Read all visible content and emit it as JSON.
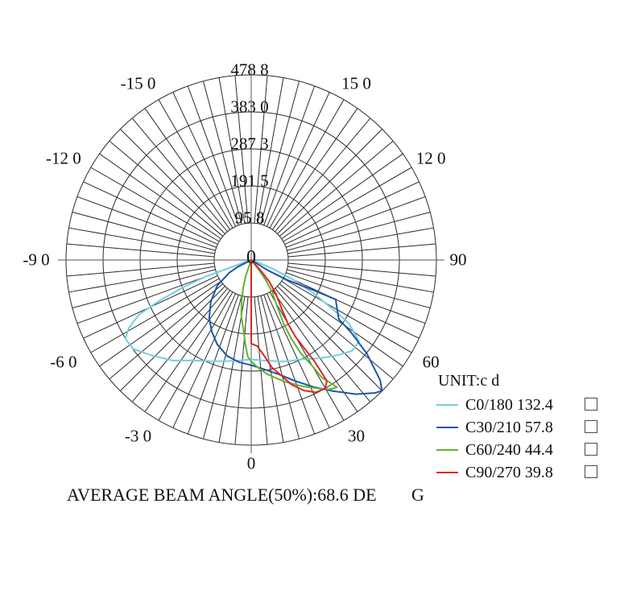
{
  "page": {
    "background": "#ffffff"
  },
  "chart_data": {
    "type": "line",
    "subtype": "polar-luminous-intensity-distribution",
    "unit": "UNIT:c d",
    "center_label": "0",
    "scale_max": 478.8,
    "ring_values": [
      95.8,
      191.5,
      287.3,
      383.0,
      478.8
    ],
    "ring_labels": [
      "95 8",
      "191 5",
      "287 3",
      "383 0",
      "478 8"
    ],
    "angle_step_deg": 5,
    "grid_color": "#2b2b2b",
    "axis_color": "#555555",
    "text_color": "#111111",
    "legend_position": "right-bottom",
    "angle_labels": [
      {
        "angle": -150,
        "text": "-15 0"
      },
      {
        "angle": -120,
        "text": "-12 0"
      },
      {
        "angle": -90,
        "text": "-9 0"
      },
      {
        "angle": -60,
        "text": "-6 0"
      },
      {
        "angle": -30,
        "text": "-3 0"
      },
      {
        "angle": 0,
        "text": "0"
      },
      {
        "angle": 30,
        "text": "30"
      },
      {
        "angle": 60,
        "text": "60"
      },
      {
        "angle": 90,
        "text": "90"
      },
      {
        "angle": 120,
        "text": "12 0"
      },
      {
        "angle": 150,
        "text": "15 0"
      }
    ],
    "series": [
      {
        "name": "C0/180",
        "beam_angle": 132.4,
        "label": "C0/180 132.4",
        "color": "#76cedd",
        "checkbox": true,
        "trace_deg_cd": [
          [
            -71,
            20
          ],
          [
            -70,
            65
          ],
          [
            -70,
            125
          ],
          [
            -68,
            195
          ],
          [
            -66,
            262
          ],
          [
            -64,
            323
          ],
          [
            -61,
            361
          ],
          [
            -58,
            384
          ],
          [
            -53,
            382
          ],
          [
            -46,
            356
          ],
          [
            -38,
            330
          ],
          [
            -30,
            300
          ],
          [
            -22,
            282
          ],
          [
            -14,
            270
          ],
          [
            -7,
            262
          ],
          [
            0,
            257
          ],
          [
            7,
            262
          ],
          [
            14,
            270
          ],
          [
            20,
            279
          ],
          [
            27,
            288
          ],
          [
            33,
            304
          ],
          [
            38,
            319
          ],
          [
            43,
            335
          ],
          [
            48,
            351
          ],
          [
            53,
            349
          ],
          [
            57,
            301
          ],
          [
            59,
            243
          ],
          [
            62,
            181
          ],
          [
            65,
            120
          ],
          [
            68,
            62
          ],
          [
            70,
            24
          ]
        ]
      },
      {
        "name": "C30/210",
        "beam_angle": 57.8,
        "label": "C30/210 57.8",
        "color": "#1e55a8",
        "checkbox": true,
        "trace_deg_cd": [
          [
            -63,
            40
          ],
          [
            -60,
            65
          ],
          [
            -53,
            110
          ],
          [
            -44,
            150
          ],
          [
            -36,
            185
          ],
          [
            -29,
            211
          ],
          [
            -22,
            235
          ],
          [
            -14,
            256
          ],
          [
            -7,
            266
          ],
          [
            0,
            272
          ],
          [
            7,
            285
          ],
          [
            14,
            306
          ],
          [
            20,
            333
          ],
          [
            26,
            365
          ],
          [
            32,
            400
          ],
          [
            38,
            440
          ],
          [
            43,
            470
          ],
          [
            45,
            478
          ],
          [
            47,
            456
          ],
          [
            51,
            385
          ],
          [
            54,
            320
          ],
          [
            56,
            273
          ],
          [
            62,
            250
          ],
          [
            65,
            241
          ],
          [
            64,
            174
          ],
          [
            61,
            106
          ],
          [
            58,
            50
          ]
        ]
      },
      {
        "name": "C60/240",
        "beam_angle": 44.4,
        "label": "C60/240 44.4",
        "color": "#63b32c",
        "checkbox": true,
        "trace_deg_cd": [
          [
            -19,
            44
          ],
          [
            -16,
            76
          ],
          [
            -13,
            111
          ],
          [
            -10,
            148
          ],
          [
            -6,
            186
          ],
          [
            -4,
            219
          ],
          [
            -2,
            250
          ],
          [
            0,
            262
          ],
          [
            3,
            276
          ],
          [
            8,
            298
          ],
          [
            15,
            325
          ],
          [
            22,
            352
          ],
          [
            27,
            372
          ],
          [
            31,
            390
          ],
          [
            34,
            397
          ],
          [
            33,
            381
          ],
          [
            31,
            355
          ],
          [
            30,
            317
          ],
          [
            28,
            273
          ],
          [
            27,
            228
          ],
          [
            27,
            185
          ],
          [
            29,
            141
          ],
          [
            33,
            100
          ],
          [
            36,
            64
          ],
          [
            38,
            30
          ]
        ]
      },
      {
        "name": "C90/270",
        "beam_angle": 39.8,
        "label": "C90/270 39.8",
        "color": "#e02323",
        "checkbox": true,
        "trace_deg_cd": [
          [
            0,
            216
          ],
          [
            4,
            223
          ],
          [
            8,
            252
          ],
          [
            11,
            284
          ],
          [
            15,
            312
          ],
          [
            18,
            339
          ],
          [
            22,
            364
          ],
          [
            26,
            381
          ],
          [
            30,
            383
          ],
          [
            32,
            369
          ],
          [
            32,
            342
          ],
          [
            32,
            307
          ],
          [
            31,
            267
          ],
          [
            30,
            230
          ],
          [
            30,
            190
          ],
          [
            32,
            148
          ],
          [
            36,
            109
          ],
          [
            40,
            73
          ],
          [
            42,
            35
          ]
        ]
      }
    ],
    "footer_text": "AVERAGE BEAM ANGLE(50%):68.6 DE",
    "footer_tail": "G"
  }
}
